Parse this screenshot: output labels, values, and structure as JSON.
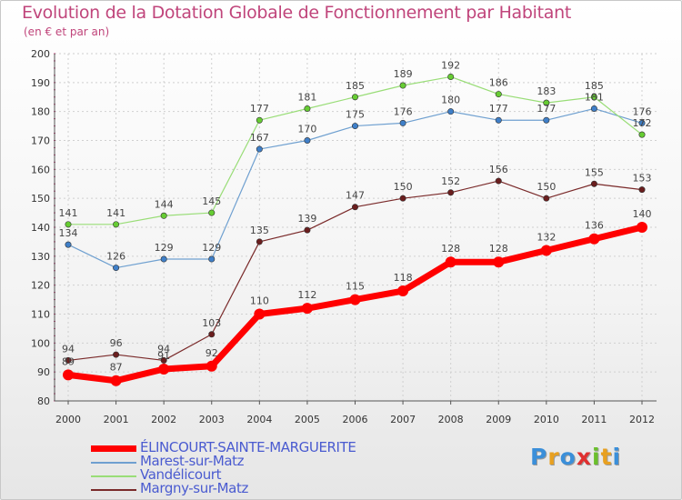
{
  "chart_data": {
    "type": "line",
    "title": "Evolution de la Dotation Globale de Fonctionnement par Habitant",
    "subtitle": "(en € et par an)",
    "xlabel": "",
    "ylabel": "",
    "x": [
      "2000",
      "2001",
      "2002",
      "2003",
      "2004",
      "2005",
      "2006",
      "2007",
      "2008",
      "2009",
      "2010",
      "2011",
      "2012"
    ],
    "ylim": [
      80,
      200
    ],
    "yticks": [
      "80",
      "90",
      "100",
      "110",
      "120",
      "130",
      "140",
      "150",
      "160",
      "170",
      "180",
      "190",
      "200"
    ],
    "grid": true,
    "legend_position": "bottom-left",
    "series": [
      {
        "name": "ÉLINCOURT-SAINTE-MARGUERITE",
        "color": "#ff0000",
        "marker_color": "#ff0000",
        "values": [
          89,
          87,
          91,
          92,
          110,
          112,
          115,
          118,
          128,
          128,
          132,
          136,
          140
        ],
        "labels": [
          "89",
          "87",
          "91",
          "92",
          "110",
          "112",
          "115",
          "118",
          "128",
          "128",
          "132",
          "136",
          "140"
        ]
      },
      {
        "name": "Marest-sur-Matz",
        "color": "#6fa0d0",
        "marker_color": "#3f7fc8",
        "values": [
          134,
          126,
          129,
          129,
          167,
          170,
          175,
          176,
          180,
          177,
          177,
          181,
          176
        ],
        "labels": [
          "134",
          "126",
          "129",
          "129",
          "167",
          "170",
          "175",
          "176",
          "180",
          "177",
          "177",
          "181",
          "176"
        ]
      },
      {
        "name": "Vandélicourt",
        "color": "#99dd77",
        "marker_color": "#66cc33",
        "values": [
          141,
          141,
          144,
          145,
          177,
          181,
          185,
          189,
          192,
          186,
          183,
          185,
          172
        ],
        "labels": [
          "141",
          "141",
          "144",
          "145",
          "177",
          "181",
          "185",
          "189",
          "192",
          "186",
          "183",
          "185",
          "172"
        ]
      },
      {
        "name": "Margny-sur-Matz",
        "color": "#7a2a2a",
        "marker_color": "#6a1e1e",
        "values": [
          94,
          96,
          94,
          103,
          135,
          139,
          147,
          150,
          152,
          156,
          150,
          155,
          153
        ],
        "labels": [
          "94",
          "96",
          "94",
          "103",
          "135",
          "139",
          "147",
          "150",
          "152",
          "156",
          "150",
          "155",
          "153"
        ]
      }
    ]
  },
  "logo": {
    "letters": [
      "P",
      "r",
      "o",
      "x",
      "i",
      "t",
      "i"
    ],
    "colors": [
      "#3b8fd9",
      "#e8a020",
      "#3b8fd9",
      "#e03030",
      "#6abf2c",
      "#e8a020",
      "#3b8fd9"
    ]
  }
}
